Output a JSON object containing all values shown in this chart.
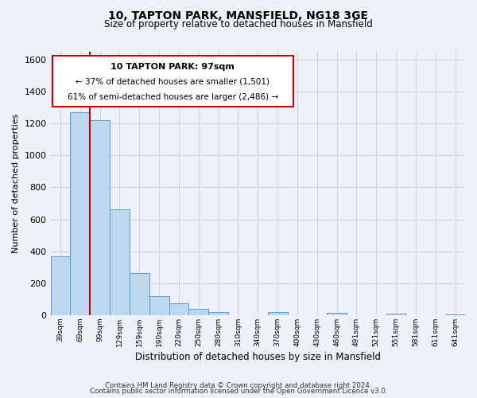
{
  "title": "10, TAPTON PARK, MANSFIELD, NG18 3GE",
  "subtitle": "Size of property relative to detached houses in Mansfield",
  "xlabel": "Distribution of detached houses by size in Mansfield",
  "ylabel": "Number of detached properties",
  "bar_labels": [
    "39sqm",
    "69sqm",
    "99sqm",
    "129sqm",
    "159sqm",
    "190sqm",
    "220sqm",
    "250sqm",
    "280sqm",
    "310sqm",
    "340sqm",
    "370sqm",
    "400sqm",
    "430sqm",
    "460sqm",
    "491sqm",
    "521sqm",
    "551sqm",
    "581sqm",
    "611sqm",
    "641sqm"
  ],
  "bar_values": [
    370,
    1270,
    1220,
    665,
    265,
    120,
    75,
    38,
    20,
    0,
    0,
    20,
    0,
    0,
    15,
    0,
    0,
    10,
    0,
    0,
    5
  ],
  "bar_color": "#bdd7ee",
  "bar_edge_color": "#5b9bd5",
  "property_label": "10 TAPTON PARK: 97sqm",
  "annotation_line1": "← 37% of detached houses are smaller (1,501)",
  "annotation_line2": "61% of semi-detached houses are larger (2,486) →",
  "annotation_box_color": "#ffffff",
  "annotation_box_edge": "#cc0000",
  "vline_color": "#cc0000",
  "ylim": [
    0,
    1650
  ],
  "yticks": [
    0,
    200,
    400,
    600,
    800,
    1000,
    1200,
    1400,
    1600
  ],
  "grid_color": "#c8d4e8",
  "footer1": "Contains HM Land Registry data © Crown copyright and database right 2024.",
  "footer2": "Contains public sector information licensed under the Open Government Licence v3.0.",
  "bg_color": "#eef2f8"
}
